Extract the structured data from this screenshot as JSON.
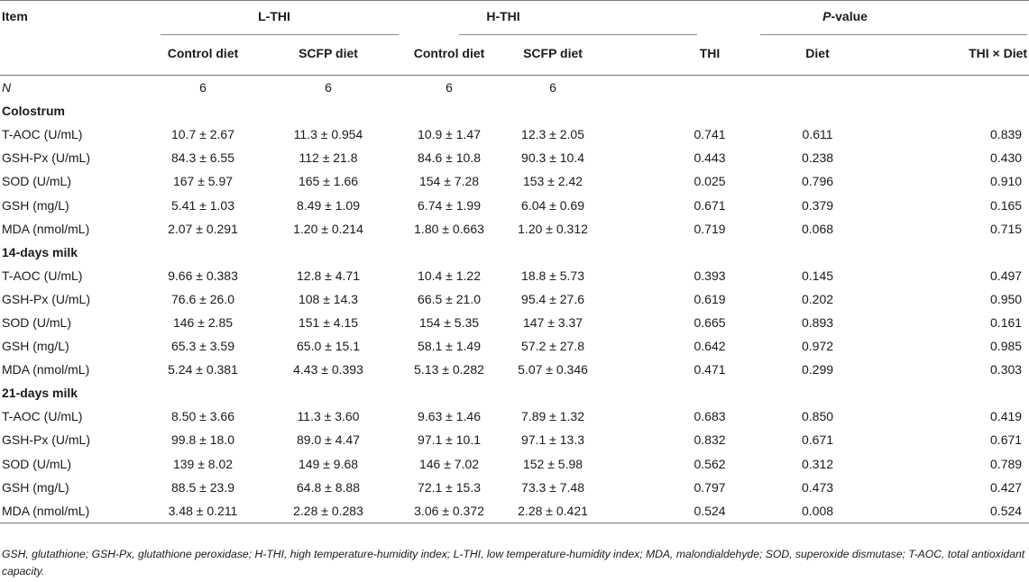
{
  "header": {
    "item": "Item",
    "lthi": "L-THI",
    "hthi": "H-THI",
    "pvalue_p": "P",
    "pvalue_rest": "-value",
    "control_diet": "Control diet",
    "scfp_diet": "SCFP diet",
    "thi": "THI",
    "diet": "Diet",
    "interaction": "THI × Diet"
  },
  "n_row": {
    "label": "N",
    "values": [
      "6",
      "6",
      "6",
      "6"
    ]
  },
  "sections": [
    {
      "title": "Colostrum",
      "rows": [
        [
          "T-AOC (U/mL)",
          "10.7 ± 2.67",
          "11.3 ± 0.954",
          "10.9 ± 1.47",
          "12.3 ± 2.05",
          "0.741",
          "0.611",
          "0.839"
        ],
        [
          "GSH-Px (U/mL)",
          "84.3 ± 6.55",
          "112 ± 21.8",
          "84.6 ± 10.8",
          "90.3 ± 10.4",
          "0.443",
          "0.238",
          "0.430"
        ],
        [
          "SOD (U/mL)",
          "167 ± 5.97",
          "165 ± 1.66",
          "154 ± 7.28",
          "153 ± 2.42",
          "0.025",
          "0.796",
          "0.910"
        ],
        [
          "GSH (mg/L)",
          "5.41 ± 1.03",
          "8.49 ± 1.09",
          "6.74 ± 1.99",
          "6.04 ± 0.69",
          "0.671",
          "0.379",
          "0.165"
        ],
        [
          "MDA (nmol/mL)",
          "2.07 ± 0.291",
          "1.20 ± 0.214",
          "1.80 ± 0.663",
          "1.20 ± 0.312",
          "0.719",
          "0.068",
          "0.715"
        ]
      ]
    },
    {
      "title": "14-days milk",
      "rows": [
        [
          "T-AOC (U/mL)",
          "9.66 ± 0.383",
          "12.8 ± 4.71",
          "10.4 ± 1.22",
          "18.8 ± 5.73",
          "0.393",
          "0.145",
          "0.497"
        ],
        [
          "GSH-Px (U/mL)",
          "76.6 ± 26.0",
          "108 ± 14.3",
          "66.5 ± 21.0",
          "95.4 ± 27.6",
          "0.619",
          "0.202",
          "0.950"
        ],
        [
          "SOD (U/mL)",
          "146 ± 2.85",
          "151 ± 4.15",
          "154 ± 5.35",
          "147 ± 3.37",
          "0.665",
          "0.893",
          "0.161"
        ],
        [
          "GSH (mg/L)",
          "65.3 ± 3.59",
          "65.0 ± 15.1",
          "58.1 ± 1.49",
          "57.2 ± 27.8",
          "0.642",
          "0.972",
          "0.985"
        ],
        [
          "MDA (nmol/mL)",
          "5.24 ± 0.381",
          "4.43 ± 0.393",
          "5.13 ± 0.282",
          "5.07 ± 0.346",
          "0.471",
          "0.299",
          "0.303"
        ]
      ]
    },
    {
      "title": "21-days milk",
      "rows": [
        [
          "T-AOC (U/mL)",
          "8.50 ± 3.66",
          "11.3 ± 3.60",
          "9.63 ± 1.46",
          "7.89 ± 1.32",
          "0.683",
          "0.850",
          "0.419"
        ],
        [
          "GSH-Px (U/mL)",
          "99.8 ± 18.0",
          "89.0 ± 4.47",
          "97.1 ± 10.1",
          "97.1 ± 13.3",
          "0.832",
          "0.671",
          "0.671"
        ],
        [
          "SOD (U/mL)",
          "139 ± 8.02",
          "149 ± 9.68",
          "146 ± 7.02",
          "152 ± 5.98",
          "0.562",
          "0.312",
          "0.789"
        ],
        [
          "GSH (mg/L)",
          "88.5 ± 23.9",
          "64.8 ± 8.88",
          "72.1 ± 15.3",
          "73.3 ± 7.48",
          "0.797",
          "0.473",
          "0.427"
        ],
        [
          "MDA (nmol/mL)",
          "3.48 ± 0.211",
          "2.28 ± 0.283",
          "3.06 ± 0.372",
          "2.28 ± 0.421",
          "0.524",
          "0.008",
          "0.524"
        ]
      ]
    }
  ],
  "footnote": "GSH, glutathione; GSH-Px, glutathione peroxidase; H-THI, high temperature-humidity index; L-THI, low temperature-humidity index; MDA, malondialdehyde; SOD, superoxide dismutase; T-AOC, total antioxidant capacity."
}
